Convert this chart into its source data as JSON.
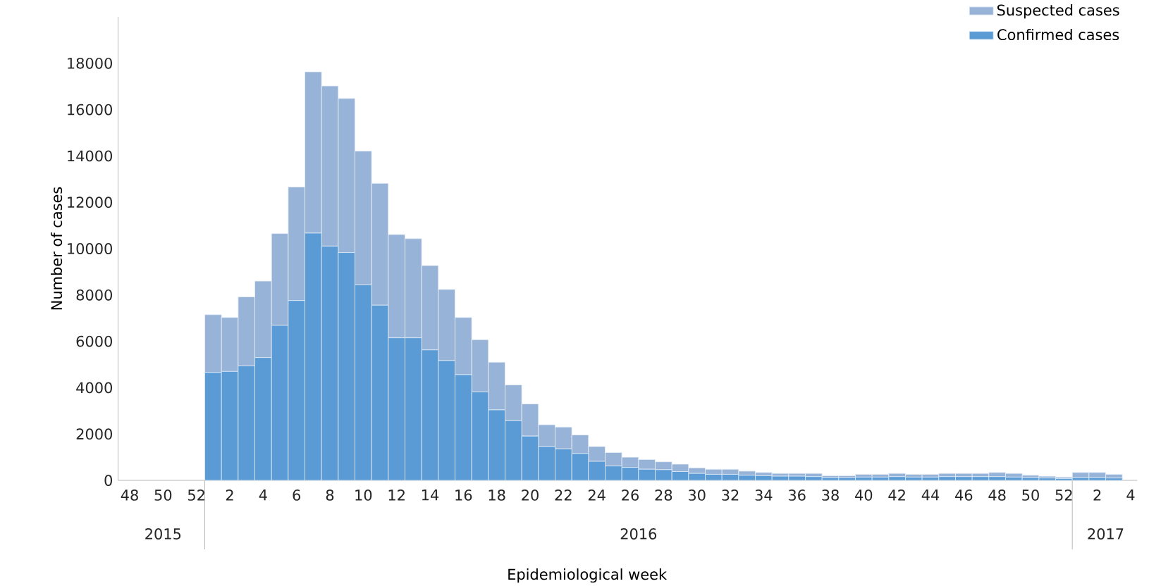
{
  "chart_data": {
    "type": "bar",
    "stacked": true,
    "xlabel": "Epidemiological week",
    "ylabel": "Number of cases",
    "categories": [
      "48",
      null,
      "50",
      null,
      "52",
      null,
      "2",
      null,
      "4",
      null,
      "6",
      null,
      "8",
      null,
      "10",
      null,
      "12",
      null,
      "14",
      null,
      "16",
      null,
      "18",
      null,
      "20",
      null,
      "22",
      null,
      "24",
      null,
      "26",
      null,
      "28",
      null,
      "30",
      null,
      "32",
      null,
      "34",
      null,
      "36",
      null,
      "38",
      null,
      "40",
      null,
      "42",
      null,
      "44",
      null,
      "46",
      null,
      "48",
      null,
      "50",
      null,
      "52",
      null,
      "2",
      null,
      "4"
    ],
    "series": [
      {
        "name": "Confirmed cases",
        "color": "#5b9bd5",
        "values": [
          null,
          null,
          null,
          null,
          null,
          4660,
          4700,
          4940,
          5300,
          6690,
          7760,
          10670,
          10110,
          9830,
          8440,
          7560,
          6150,
          6150,
          5630,
          5170,
          4560,
          3820,
          3040,
          2570,
          1910,
          1460,
          1360,
          1160,
          820,
          620,
          560,
          480,
          460,
          380,
          300,
          260,
          260,
          220,
          200,
          180,
          180,
          160,
          120,
          120,
          140,
          140,
          160,
          140,
          140,
          160,
          160,
          160,
          160,
          140,
          120,
          100,
          80,
          120,
          120,
          100,
          null
        ]
      },
      {
        "name": "Suspected cases",
        "color": "#98b3d8",
        "values": [
          null,
          null,
          null,
          null,
          null,
          2490,
          2330,
          2980,
          3300,
          3960,
          4900,
          6960,
          6910,
          6650,
          5770,
          5260,
          4460,
          4280,
          3640,
          3070,
          2470,
          2250,
          2060,
          1550,
          1390,
          940,
          940,
          800,
          640,
          580,
          440,
          420,
          340,
          320,
          240,
          220,
          220,
          180,
          140,
          120,
          120,
          140,
          80,
          80,
          120,
          120,
          140,
          120,
          120,
          140,
          140,
          140,
          180,
          160,
          100,
          80,
          60,
          220,
          220,
          160,
          null
        ]
      }
    ],
    "ylim": [
      0,
      20000
    ],
    "yticks": [
      0,
      2000,
      4000,
      6000,
      8000,
      10000,
      12000,
      14000,
      16000,
      18000
    ],
    "annotations": [
      "2015",
      "2016",
      "2017"
    ],
    "legend": "top right",
    "grid": false
  }
}
